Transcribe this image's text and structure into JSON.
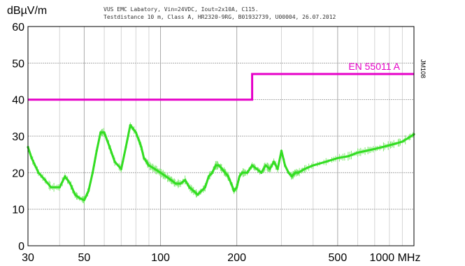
{
  "chart_data": {
    "type": "line",
    "ylabel": "dBµV/m",
    "header_line1": "VUS EMC Labatory, Vin=24VDC, Iout=2x10A, C115.",
    "header_line2": "Testdistance 10 m, Class A, HR2320-9RG, B01932739, U00004, 26.07.2012",
    "side_label": "JM108",
    "x_scale": "log",
    "xlim": [
      30,
      1000
    ],
    "ylim": [
      0,
      60
    ],
    "grid": true,
    "x_ticks": [
      {
        "value": 30,
        "label": "30"
      },
      {
        "value": 50,
        "label": "50"
      },
      {
        "value": 100,
        "label": "100"
      },
      {
        "value": 200,
        "label": "200"
      },
      {
        "value": 500,
        "label": "500"
      },
      {
        "value": 1000,
        "label": "1000 MHz"
      }
    ],
    "x_minor_gridlines": [
      40,
      60,
      70,
      80,
      90,
      300,
      400,
      600,
      700,
      800,
      900
    ],
    "y_ticks": [
      0,
      10,
      20,
      30,
      40,
      50,
      60
    ],
    "limit_line": {
      "name": "EN 55011 A",
      "color": "#e600c8",
      "x": [
        30,
        230,
        230,
        1000
      ],
      "y": [
        40,
        40,
        47,
        47
      ]
    },
    "series": [
      {
        "color": "#33dd22",
        "x": [
          30,
          31,
          33,
          35,
          37,
          40,
          42,
          44,
          46,
          48,
          50,
          52,
          54,
          56,
          58,
          60,
          63,
          66,
          70,
          73,
          76,
          78,
          80,
          82,
          84,
          86,
          88,
          90,
          95,
          100,
          105,
          110,
          115,
          120,
          125,
          130,
          135,
          140,
          145,
          150,
          155,
          160,
          165,
          170,
          175,
          180,
          185,
          190,
          195,
          200,
          205,
          210,
          220,
          230,
          240,
          250,
          260,
          270,
          280,
          290,
          300,
          310,
          320,
          330,
          340,
          350,
          370,
          400,
          450,
          500,
          550,
          600,
          650,
          700,
          750,
          800,
          850,
          900,
          950,
          1000
        ],
        "y": [
          27,
          24,
          20,
          18,
          16,
          16,
          19,
          17,
          14,
          13,
          12.5,
          15,
          20,
          26,
          31,
          31,
          27,
          23,
          21,
          27,
          33,
          32,
          31,
          29,
          27,
          24,
          23,
          22,
          21,
          20,
          19,
          18,
          17,
          17,
          18,
          16,
          15,
          14,
          15,
          16,
          19,
          20,
          22,
          22,
          21,
          20,
          19,
          17,
          15,
          16,
          19,
          20,
          20,
          22,
          21,
          20,
          22,
          21,
          23,
          21,
          26,
          22,
          20,
          19,
          20,
          20,
          21,
          22,
          23,
          24,
          24.5,
          25.5,
          26,
          26.5,
          27,
          27.5,
          28,
          28.5,
          29.5,
          30.5
        ]
      }
    ]
  }
}
